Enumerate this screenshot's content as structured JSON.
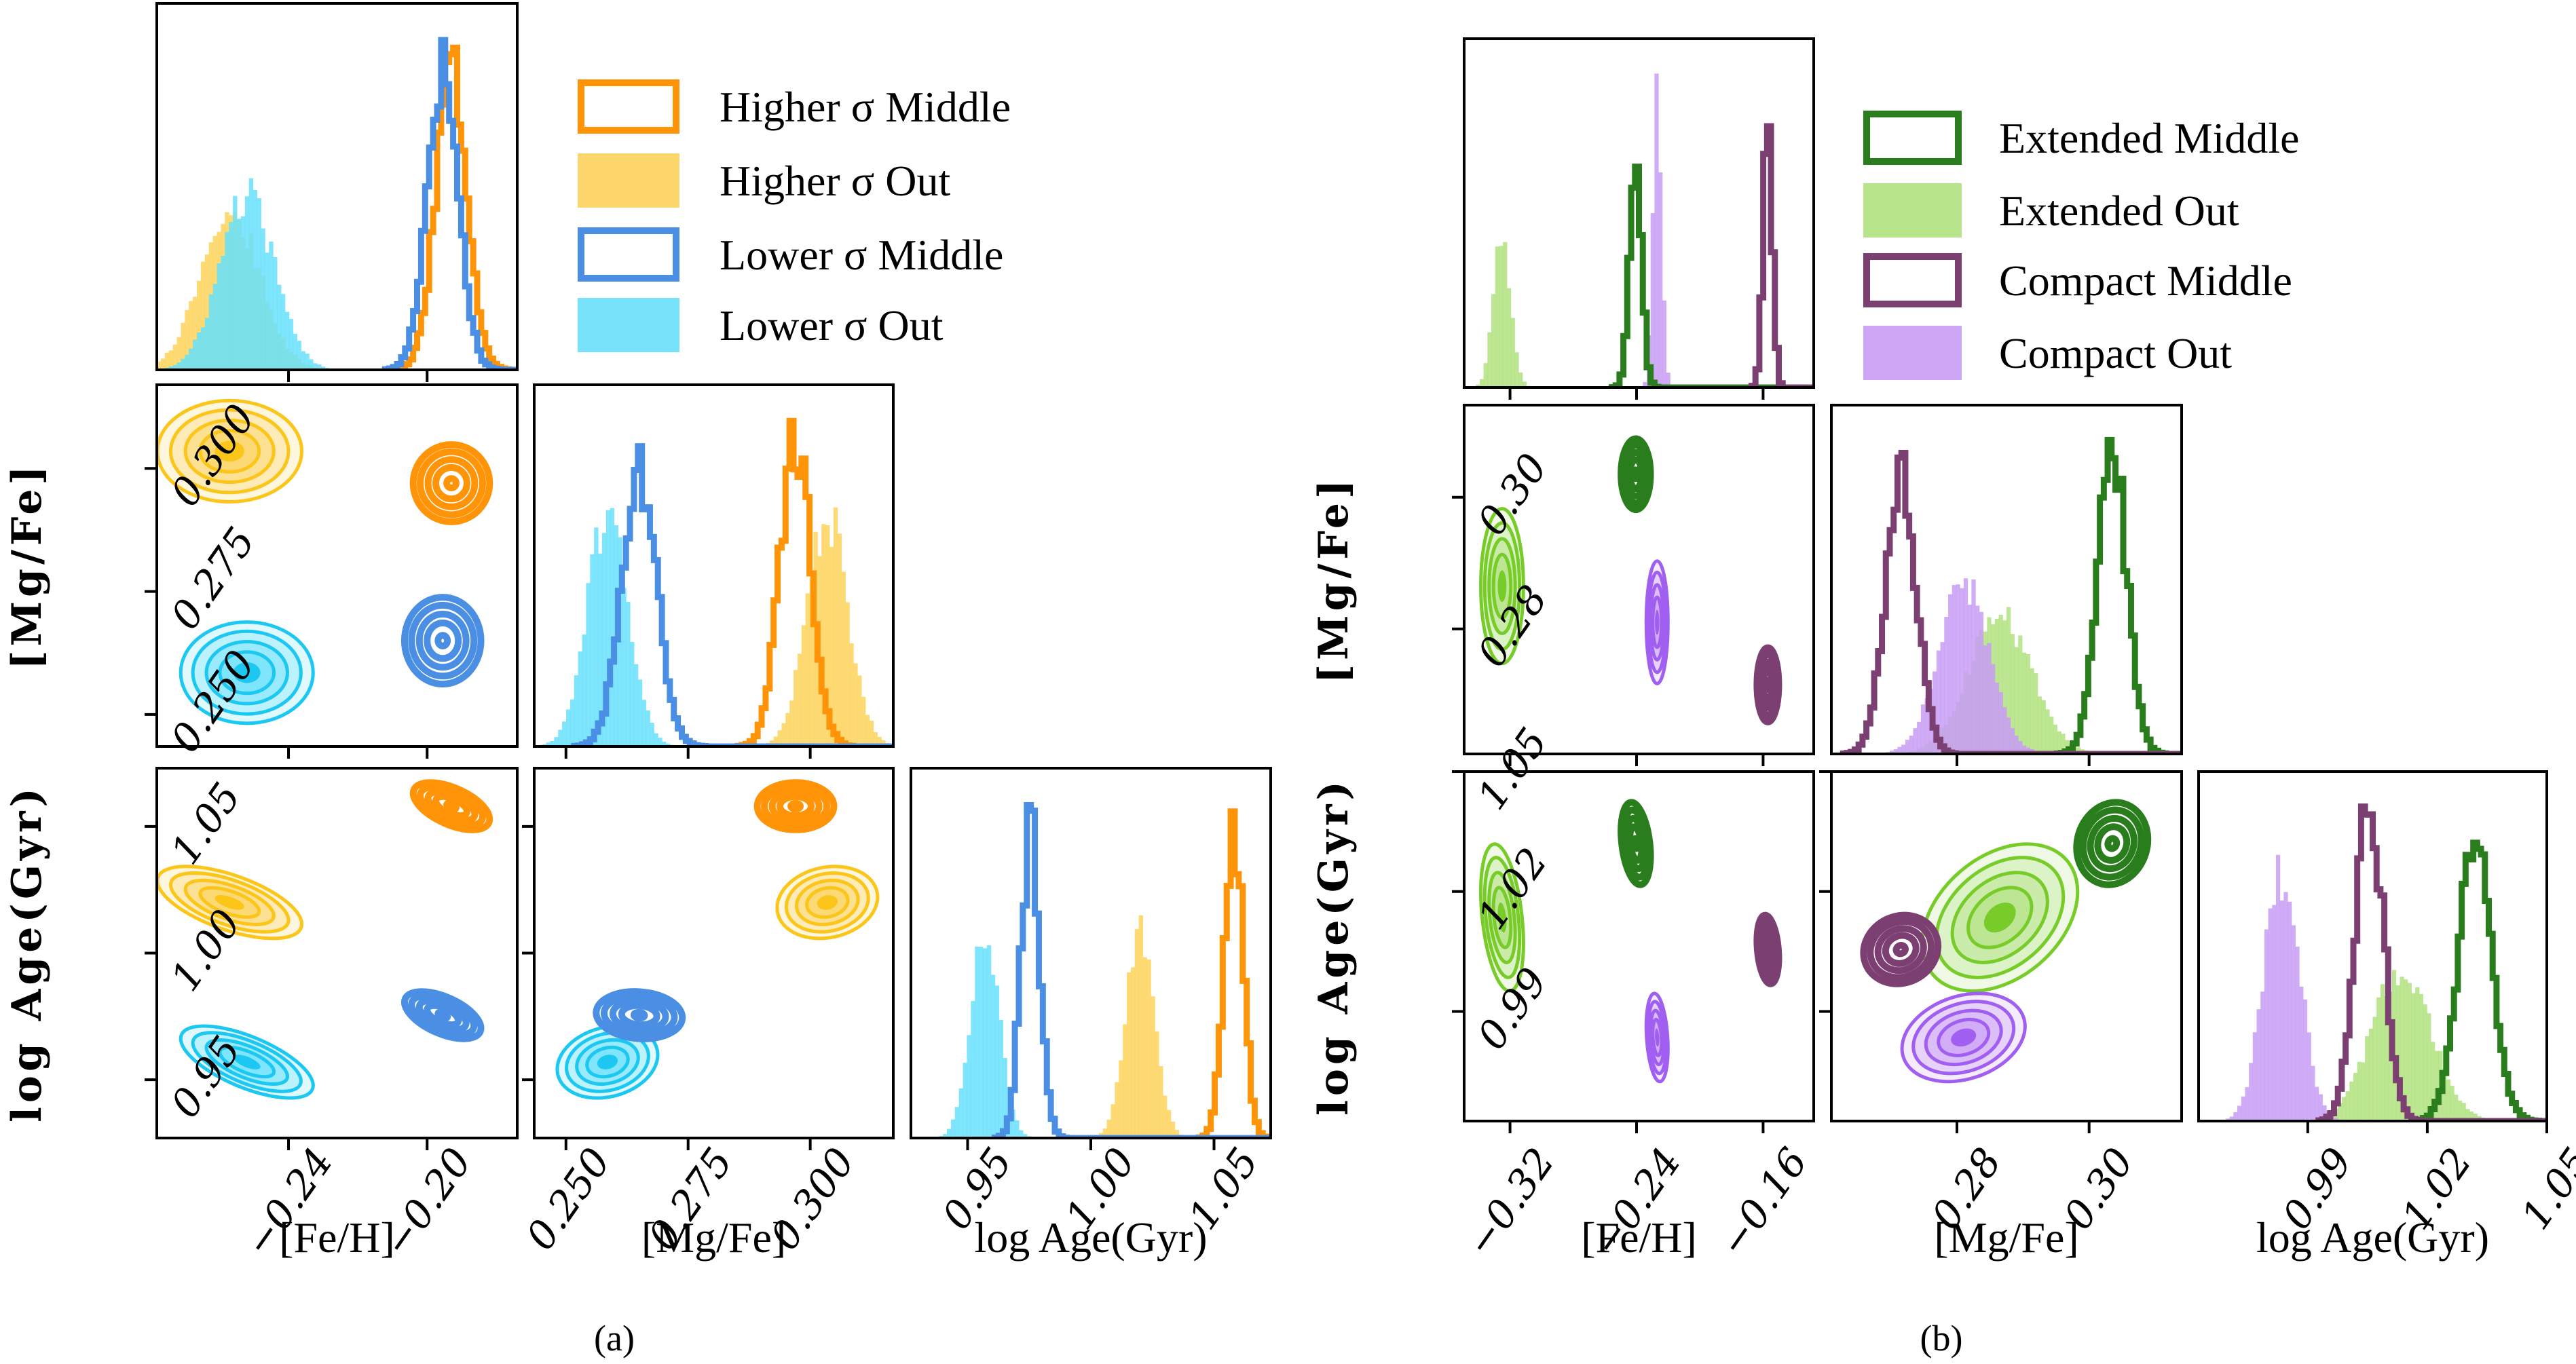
{
  "chart_data": [
    {
      "type": "corner",
      "panel_label": "(a)",
      "parameters": [
        {
          "key": "feh",
          "label": "[Fe/H]",
          "range": [
            -0.278,
            -0.174
          ],
          "ticks": [
            -0.24,
            -0.2
          ],
          "tick_labels": [
            "−0.24",
            "−0.20"
          ]
        },
        {
          "key": "mgfe",
          "label": "[Mg/Fe]",
          "range": [
            0.2435,
            0.317
          ],
          "ticks": [
            0.25,
            0.275,
            0.3
          ],
          "tick_labels": [
            "0.250",
            "0.275",
            "0.300"
          ]
        },
        {
          "key": "age",
          "label": "log Age(Gyr)",
          "range": [
            0.927,
            1.073
          ],
          "ticks": [
            0.95,
            1.0,
            1.05
          ],
          "tick_labels": [
            "0.95",
            "1.00",
            "1.05"
          ]
        }
      ],
      "y_labels": {
        "mgfe": "[Mg/Fe]",
        "age": "log Age(Gyr)"
      },
      "legend_position": "top-right",
      "series": [
        {
          "name": "Higher σ Middle",
          "style": "step",
          "color": "#ff9408",
          "mean": {
            "feh": -0.193,
            "mgfe": 0.297,
            "age": 1.058
          },
          "sd": {
            "feh": 0.0045,
            "mgfe": 0.0032,
            "age": 0.0038
          },
          "corr": {
            "feh_mgfe": 0.0,
            "feh_age": -0.55,
            "mgfe_age": 0.0
          }
        },
        {
          "name": "Higher σ Out",
          "style": "filled",
          "color": "#fdd35c",
          "contour_color": "#fcc519",
          "mean": {
            "feh": -0.257,
            "mgfe": 0.3035,
            "age": 1.02
          },
          "sd": {
            "feh": 0.0085,
            "mgfe": 0.0042,
            "age": 0.0058
          },
          "corr": {
            "feh_mgfe": 0.0,
            "feh_age": -0.6,
            "mgfe_age": 0.15
          }
        },
        {
          "name": "Lower σ Middle",
          "style": "step",
          "color": "#4a8fe3",
          "mean": {
            "feh": -0.1955,
            "mgfe": 0.265,
            "age": 0.9755
          },
          "sd": {
            "feh": 0.0045,
            "mgfe": 0.0036,
            "age": 0.0038
          },
          "corr": {
            "feh_mgfe": 0.0,
            "feh_age": -0.55,
            "mgfe_age": -0.1
          }
        },
        {
          "name": "Lower σ Out",
          "style": "filled",
          "color": "#67e0fb",
          "contour_color": "#1cc8f2",
          "mean": {
            "feh": -0.252,
            "mgfe": 0.2585,
            "age": 0.957
          },
          "sd": {
            "feh": 0.0078,
            "mgfe": 0.0042,
            "age": 0.0058
          },
          "corr": {
            "feh_mgfe": 0.0,
            "feh_age": -0.65,
            "mgfe_age": 0.2
          }
        }
      ]
    },
    {
      "type": "corner",
      "panel_label": "(b)",
      "parameters": [
        {
          "key": "feh",
          "label": "[Fe/H]",
          "range": [
            -0.349,
            -0.128
          ],
          "ticks": [
            -0.32,
            -0.24,
            -0.16
          ],
          "tick_labels": [
            "−0.32",
            "−0.24",
            "−0.16"
          ]
        },
        {
          "key": "mgfe",
          "label": "[Mg/Fe]",
          "range": [
            0.261,
            0.314
          ],
          "ticks": [
            0.28,
            0.3
          ],
          "tick_labels": [
            "0.28",
            "0.30"
          ]
        },
        {
          "key": "age",
          "label": "log Age(Gyr)",
          "range": [
            0.9626,
            1.05
          ],
          "ticks": [
            0.99,
            1.02,
            1.05
          ],
          "tick_labels": [
            "0.99",
            "1.02",
            "1.05"
          ]
        }
      ],
      "y_labels": {
        "mgfe": "[Mg/Fe]",
        "age": "log Age(Gyr)"
      },
      "legend_position": "top-right",
      "series": [
        {
          "name": "Extended Middle",
          "style": "step",
          "color": "#2a7d1c",
          "mean": {
            "feh": -0.2405,
            "mgfe": 0.3035,
            "age": 1.032
          },
          "sd": {
            "feh": 0.0038,
            "mgfe": 0.0022,
            "age": 0.0042
          },
          "corr": {
            "feh_mgfe": 0.0,
            "feh_age": -0.3,
            "mgfe_age": 0.1
          }
        },
        {
          "name": "Extended Out",
          "style": "filled",
          "color": "#b0e27e",
          "contour_color": "#78cc2a",
          "mean": {
            "feh": -0.325,
            "mgfe": 0.2865,
            "age": 1.0135
          },
          "sd": {
            "feh": 0.0055,
            "mgfe": 0.0048,
            "age": 0.0075
          },
          "corr": {
            "feh_mgfe": 0.0,
            "feh_age": -0.35,
            "mgfe_age": 0.35
          }
        },
        {
          "name": "Compact Middle",
          "style": "step",
          "color": "#7c3f72",
          "mean": {
            "feh": -0.157,
            "mgfe": 0.2715,
            "age": 1.0055
          },
          "sd": {
            "feh": 0.0028,
            "mgfe": 0.0023,
            "age": 0.0035
          },
          "corr": {
            "feh_mgfe": 0.0,
            "feh_age": -0.25,
            "mgfe_age": 0.1
          }
        },
        {
          "name": "Compact Out",
          "style": "filled",
          "color": "#c89cf4",
          "contour_color": "#a05ff0",
          "mean": {
            "feh": -0.227,
            "mgfe": 0.281,
            "age": 0.9835
          },
          "sd": {
            "feh": 0.0028,
            "mgfe": 0.0038,
            "age": 0.0045
          },
          "corr": {
            "feh_mgfe": 0.0,
            "feh_age": -0.25,
            "mgfe_age": 0.25
          }
        }
      ]
    }
  ]
}
